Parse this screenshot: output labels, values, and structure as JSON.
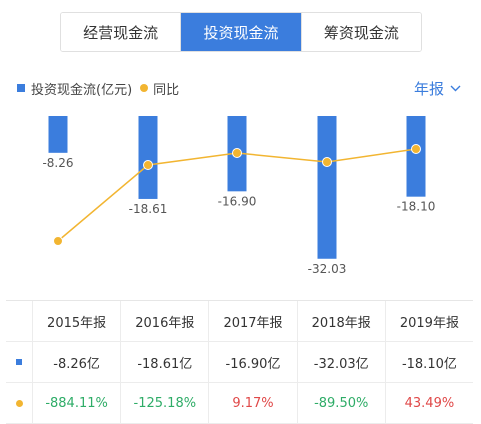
{
  "tabs": [
    {
      "label": "经营现金流",
      "active": false
    },
    {
      "label": "投资现金流",
      "active": true
    },
    {
      "label": "筹资现金流",
      "active": false
    }
  ],
  "legend": {
    "bar_label": "投资现金流(亿元)",
    "line_label": "同比"
  },
  "period_selector": {
    "label": "年报",
    "icon": "chevron-down-icon"
  },
  "colors": {
    "accent": "#3b7ddd",
    "line": "#f2b531",
    "positive": "#e04848",
    "negative": "#2eac67"
  },
  "chart_data": {
    "type": "bar",
    "categories": [
      "2015年报",
      "2016年报",
      "2017年报",
      "2018年报",
      "2019年报"
    ],
    "series": [
      {
        "name": "投资现金流(亿元)",
        "type": "bar",
        "values": [
          -8.26,
          -18.61,
          -16.9,
          -32.03,
          -18.1
        ],
        "labels": [
          "-8.26",
          "-18.61",
          "-16.90",
          "-32.03",
          "-18.10"
        ]
      },
      {
        "name": "同比",
        "type": "line",
        "values": [
          -884.11,
          -125.18,
          9.17,
          -89.5,
          43.49
        ]
      }
    ],
    "ylim": [
      -35,
      0
    ]
  },
  "table": {
    "headers": [
      "2015年报",
      "2016年报",
      "2017年报",
      "2018年报",
      "2019年报"
    ],
    "rows": [
      {
        "marker": "bar",
        "cells": [
          {
            "text": "-8.26亿",
            "tone": "neutral"
          },
          {
            "text": "-18.61亿",
            "tone": "neutral"
          },
          {
            "text": "-16.90亿",
            "tone": "neutral"
          },
          {
            "text": "-32.03亿",
            "tone": "neutral"
          },
          {
            "text": "-18.10亿",
            "tone": "neutral"
          }
        ]
      },
      {
        "marker": "line",
        "cells": [
          {
            "text": "-884.11%",
            "tone": "negative"
          },
          {
            "text": "-125.18%",
            "tone": "negative"
          },
          {
            "text": "9.17%",
            "tone": "positive"
          },
          {
            "text": "-89.50%",
            "tone": "negative"
          },
          {
            "text": "43.49%",
            "tone": "positive"
          }
        ]
      }
    ]
  }
}
